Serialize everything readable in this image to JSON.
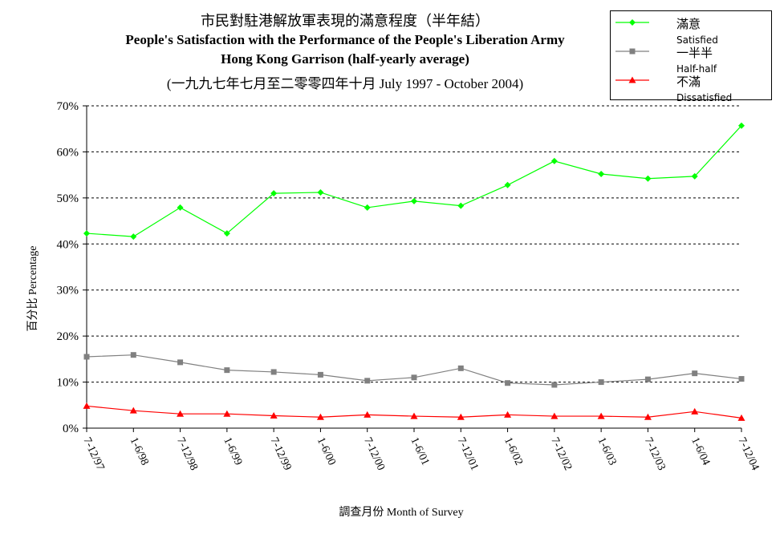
{
  "title": {
    "line1": "市民對駐港解放軍表現的滿意程度（半年結）",
    "line2": "People's Satisfaction with the Performance of the People's Liberation Army",
    "line3": "Hong Kong Garrison  (half-yearly average)",
    "line4": "(一九九七年七月至二零零四年十月 July 1997 - October 2004)"
  },
  "chart_data": {
    "type": "line",
    "categories": [
      "7-12/97",
      "1-6/98",
      "7-12/98",
      "1-6/99",
      "7-12/99",
      "1-6/00",
      "7-12/00",
      "1-6/01",
      "7-12/01",
      "1-6/02",
      "7-12/02",
      "1-6/03",
      "7-12/03",
      "1-6/04",
      "7-12/04"
    ],
    "series": [
      {
        "name_zh": "滿意",
        "name": "Satisfied",
        "color": "#00ff00",
        "marker": "diamond",
        "values": [
          42.3,
          41.6,
          47.9,
          42.3,
          51.0,
          51.2,
          47.9,
          49.3,
          48.3,
          52.8,
          58.0,
          55.2,
          54.2,
          54.7,
          65.7
        ]
      },
      {
        "name_zh": "一半半",
        "name": "Half-half",
        "color": "#808080",
        "marker": "square",
        "values": [
          15.5,
          15.9,
          14.3,
          12.6,
          12.2,
          11.6,
          10.3,
          11.0,
          13.0,
          9.8,
          9.4,
          10.0,
          10.6,
          11.9,
          10.7
        ]
      },
      {
        "name_zh": "不滿",
        "name": "Dissatisfied",
        "color": "#ff0000",
        "marker": "triangle",
        "values": [
          4.8,
          3.8,
          3.1,
          3.1,
          2.7,
          2.4,
          2.9,
          2.6,
          2.4,
          2.9,
          2.6,
          2.6,
          2.4,
          3.6,
          2.2
        ]
      }
    ],
    "ylim": [
      0,
      70
    ],
    "yticks": [
      "0%",
      "10%",
      "20%",
      "30%",
      "40%",
      "50%",
      "60%",
      "70%"
    ],
    "ylabel": "百分比 Percentage",
    "xlabel": "調查月份 Month of Survey",
    "grid": "horizontal dashed",
    "legend": "top-right"
  }
}
